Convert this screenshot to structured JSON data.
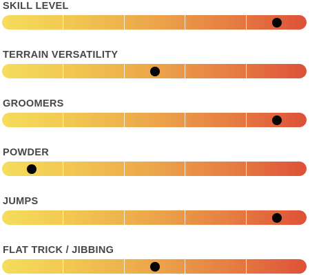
{
  "ratings": [
    {
      "label": "SKILL LEVEL",
      "value": 0.902
    },
    {
      "label": "TERRAIN VERSATILITY",
      "value": 0.502
    },
    {
      "label": "GROOMERS",
      "value": 0.902
    },
    {
      "label": "POWDER",
      "value": 0.097
    },
    {
      "label": "JUMPS",
      "value": 0.902
    },
    {
      "label": "FLAT TRICK / JIBBING",
      "value": 0.502
    }
  ],
  "scale_segments": 5,
  "colors": {
    "gradient_start": "#f5dd5c",
    "gradient_end": "#de5137",
    "marker": "#050505",
    "label": "#464646"
  }
}
